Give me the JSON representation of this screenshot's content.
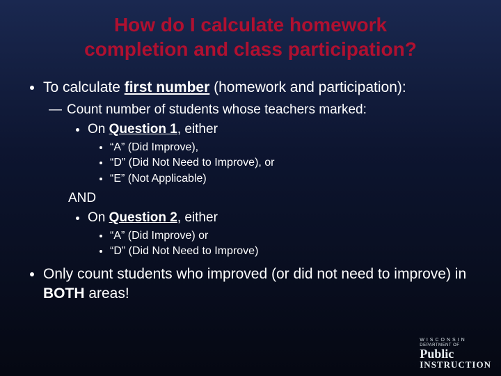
{
  "title_fontsize": 28,
  "title_color": "#b01030",
  "body_color": "#ffffff",
  "title_line1": "How do I calculate homework",
  "title_line2": "completion and class participation?",
  "b1_pre": "To calculate ",
  "b1_bold": "first number",
  "b1_post": " (homework and participation):",
  "b1_fontsize": 21,
  "dash1": "Count number of students whose teachers marked:",
  "dash_fontsize": 19,
  "l3a_pre": "On ",
  "l3a_bold": "Question 1",
  "l3a_post": ", either",
  "l3_fontsize": 19,
  "q1_opt1": "“A” (Did Improve),",
  "q1_opt2": "“D” (Did Not Need to Improve), or",
  "q1_opt3": "“E” (Not Applicable)",
  "l4_fontsize": 16,
  "and_label": "AND",
  "and_fontsize": 19,
  "l3b_pre": "On ",
  "l3b_bold": "Question 2",
  "l3b_post": ", either",
  "q2_opt1": "“A” (Did Improve) or",
  "q2_opt2": "“D” (Did Not Need to Improve)",
  "b2_pre": "Only count students who improved (or did not need to improve) in ",
  "b2_bold": "BOTH",
  "b2_post": " areas!",
  "b2_fontsize": 21,
  "logo_wi": "WISCONSIN",
  "logo_dept": "DEPARTMENT OF",
  "logo_public": "Public",
  "logo_instr": "INSTRUCTION"
}
